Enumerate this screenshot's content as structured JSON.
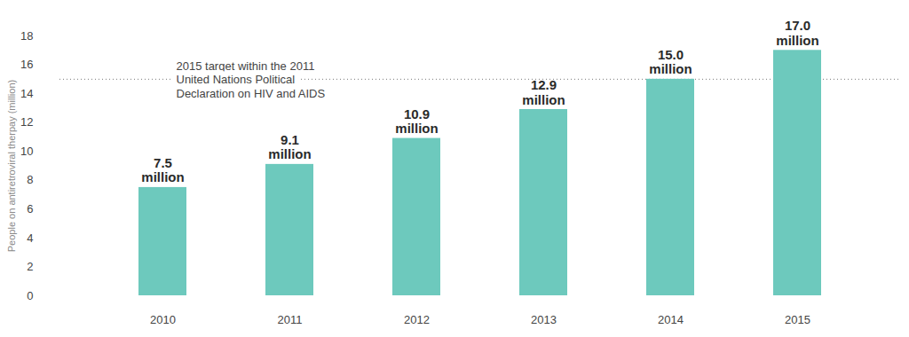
{
  "chart_data": {
    "type": "bar",
    "categories": [
      "2010",
      "2011",
      "2012",
      "2013",
      "2014",
      "2015"
    ],
    "values": [
      7.5,
      9.1,
      10.9,
      12.9,
      15.0,
      17.0
    ],
    "value_labels": [
      "7.5 million",
      "9.1 million",
      "10.9 million",
      "12.9 million",
      "15.0 million",
      "17.0 million"
    ],
    "data_labels": true,
    "color": "#6dc9bd",
    "y_label": "People on antiretroviral therpay (million)",
    "ylim": [
      0,
      18
    ],
    "yticks": [
      0,
      2,
      4,
      6,
      8,
      10,
      12,
      14,
      16,
      18
    ],
    "grid": false,
    "reference_line": {
      "value": 15,
      "label": "2015 target within the 2011\nUnited Nations Political\nDeclaration on HIV and AIDS"
    }
  }
}
